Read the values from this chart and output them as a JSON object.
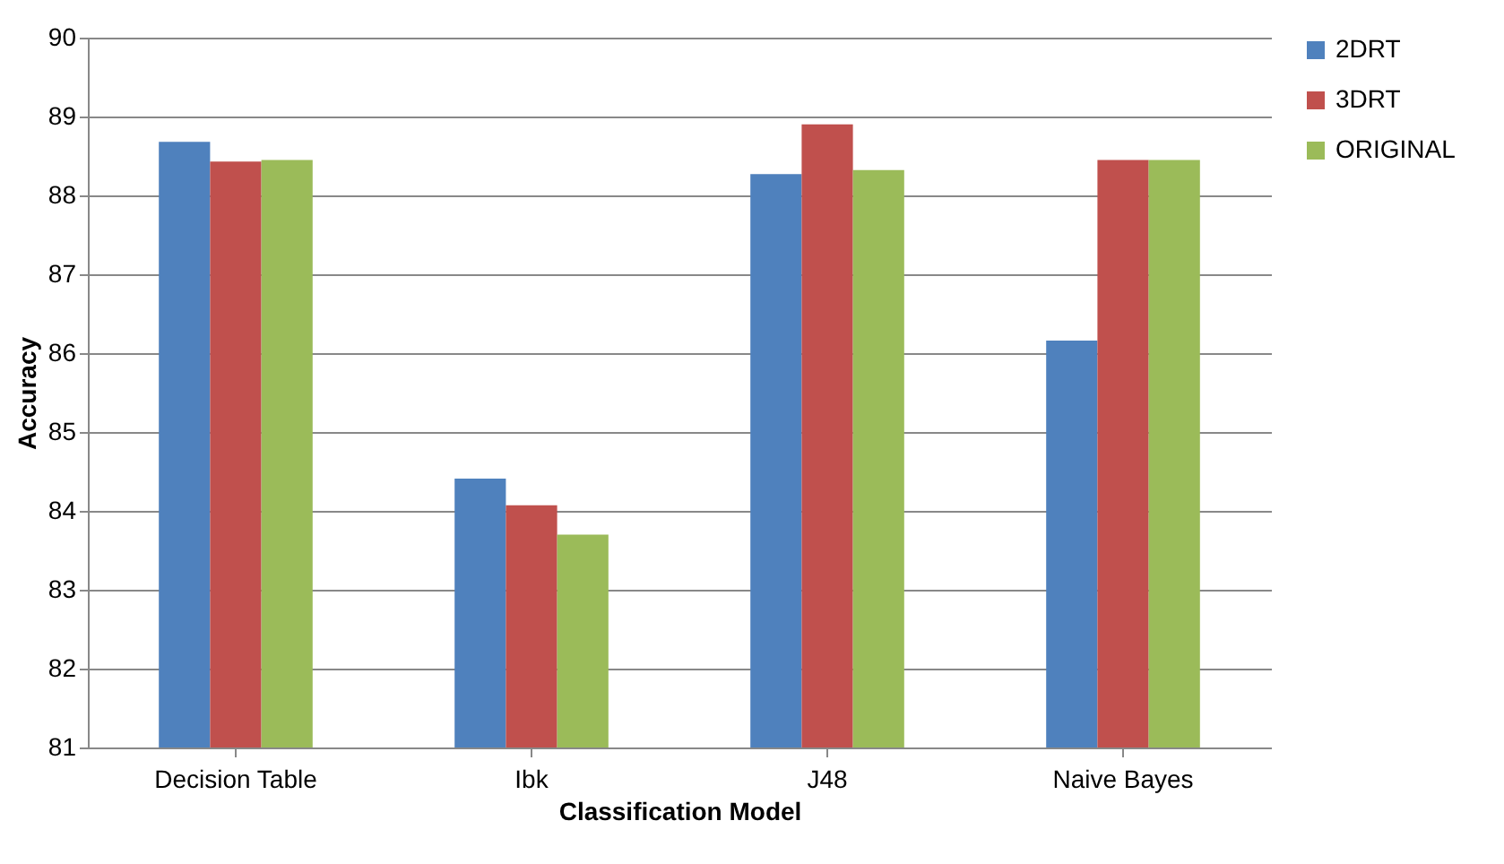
{
  "chart_data": {
    "type": "bar",
    "xlabel": "Classification Model",
    "ylabel": "Accuracy",
    "categories": [
      "Decision Table",
      "Ibk",
      "J48",
      "Naive Bayes"
    ],
    "series": [
      {
        "name": "2DRT",
        "color": "#4f81bd",
        "values": [
          88.68,
          84.41,
          88.27,
          86.16
        ]
      },
      {
        "name": "3DRT",
        "color": "#c0504d",
        "values": [
          88.43,
          84.07,
          88.9,
          88.45
        ]
      },
      {
        "name": "ORIGINAL",
        "color": "#9bbb59",
        "values": [
          88.45,
          83.7,
          88.32,
          88.45
        ]
      }
    ],
    "ylim": [
      81,
      90
    ],
    "yticks": [
      81,
      82,
      83,
      84,
      85,
      86,
      87,
      88,
      89,
      90
    ],
    "grid": "y",
    "legend": "right"
  }
}
